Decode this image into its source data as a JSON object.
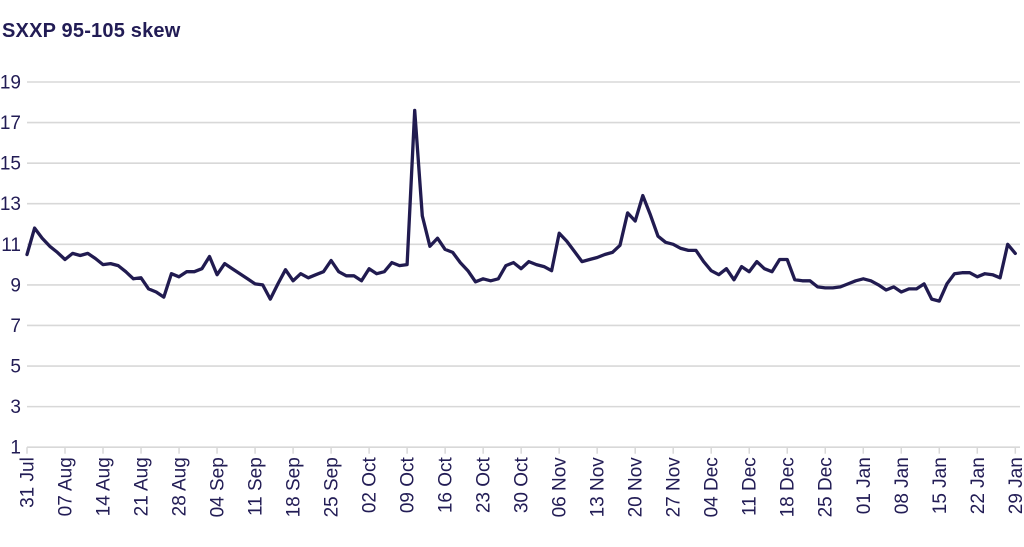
{
  "title": "SXXP 95-105 skew",
  "colors": {
    "navy": "#221c55",
    "line": "#211b50",
    "grid": "#d8d8d8",
    "background": "#ffffff"
  },
  "chart_data": {
    "type": "line",
    "title": "SXXP 95-105 skew",
    "xlabel": "",
    "ylabel": "",
    "ylim": [
      1,
      19
    ],
    "y_ticks": [
      1,
      3,
      5,
      7,
      9,
      11,
      13,
      15,
      17,
      19
    ],
    "grid": "horizontal",
    "legend": "none",
    "x_tick_labels": [
      "31 Jul",
      "07 Aug",
      "14 Aug",
      "21 Aug",
      "28 Aug",
      "04 Sep",
      "11 Sep",
      "18 Sep",
      "25 Sep",
      "02 Oct",
      "09 Oct",
      "16 Oct",
      "23 Oct",
      "30 Oct",
      "06 Nov",
      "13 Nov",
      "20 Nov",
      "27 Nov",
      "04 Dec",
      "11 Dec",
      "18 Dec",
      "25 Dec",
      "01 Jan",
      "08 Jan",
      "15 Jan",
      "22 Jan",
      "29 Jan"
    ],
    "x": [
      "31 Jul",
      "01 Aug",
      "02 Aug",
      "03 Aug",
      "04 Aug",
      "07 Aug",
      "08 Aug",
      "09 Aug",
      "10 Aug",
      "11 Aug",
      "14 Aug",
      "15 Aug",
      "16 Aug",
      "17 Aug",
      "18 Aug",
      "21 Aug",
      "22 Aug",
      "23 Aug",
      "24 Aug",
      "25 Aug",
      "28 Aug",
      "29 Aug",
      "30 Aug",
      "31 Aug",
      "01 Sep",
      "04 Sep",
      "05 Sep",
      "06 Sep",
      "07 Sep",
      "08 Sep",
      "11 Sep",
      "12 Sep",
      "13 Sep",
      "14 Sep",
      "15 Sep",
      "18 Sep",
      "19 Sep",
      "20 Sep",
      "21 Sep",
      "22 Sep",
      "25 Sep",
      "26 Sep",
      "27 Sep",
      "28 Sep",
      "29 Sep",
      "02 Oct",
      "03 Oct",
      "04 Oct",
      "05 Oct",
      "06 Oct",
      "09 Oct",
      "10 Oct",
      "11 Oct",
      "12 Oct",
      "13 Oct",
      "16 Oct",
      "17 Oct",
      "18 Oct",
      "19 Oct",
      "20 Oct",
      "23 Oct",
      "24 Oct",
      "25 Oct",
      "26 Oct",
      "27 Oct",
      "30 Oct",
      "31 Oct",
      "01 Nov",
      "02 Nov",
      "03 Nov",
      "06 Nov",
      "07 Nov",
      "08 Nov",
      "09 Nov",
      "10 Nov",
      "13 Nov",
      "14 Nov",
      "15 Nov",
      "16 Nov",
      "17 Nov",
      "20 Nov",
      "21 Nov",
      "22 Nov",
      "23 Nov",
      "24 Nov",
      "27 Nov",
      "28 Nov",
      "29 Nov",
      "30 Nov",
      "01 Dec",
      "04 Dec",
      "05 Dec",
      "06 Dec",
      "07 Dec",
      "08 Dec",
      "11 Dec",
      "12 Dec",
      "13 Dec",
      "14 Dec",
      "15 Dec",
      "18 Dec",
      "19 Dec",
      "20 Dec",
      "21 Dec",
      "22 Dec",
      "25 Dec",
      "26 Dec",
      "27 Dec",
      "28 Dec",
      "29 Dec",
      "01 Jan",
      "02 Jan",
      "03 Jan",
      "04 Jan",
      "05 Jan",
      "08 Jan",
      "09 Jan",
      "10 Jan",
      "11 Jan",
      "12 Jan",
      "15 Jan",
      "16 Jan",
      "17 Jan",
      "18 Jan",
      "19 Jan",
      "22 Jan",
      "23 Jan",
      "24 Jan",
      "25 Jan",
      "26 Jan",
      "29 Jan"
    ],
    "series": [
      {
        "name": "SXXP 95-105 skew",
        "values": [
          10.5,
          11.8,
          11.3,
          10.9,
          10.6,
          10.25,
          10.55,
          10.45,
          10.55,
          10.3,
          10.0,
          10.05,
          9.95,
          9.65,
          9.3,
          9.35,
          8.8,
          8.65,
          8.4,
          9.55,
          9.4,
          9.65,
          9.65,
          9.8,
          10.4,
          9.5,
          10.05,
          9.8,
          9.55,
          9.3,
          9.05,
          9.0,
          8.3,
          9.05,
          9.75,
          9.2,
          9.55,
          9.35,
          9.5,
          9.65,
          10.2,
          9.65,
          9.45,
          9.45,
          9.2,
          9.8,
          9.55,
          9.65,
          10.1,
          9.95,
          10.0,
          17.6,
          12.4,
          10.9,
          11.3,
          10.75,
          10.6,
          10.1,
          9.7,
          9.15,
          9.3,
          9.2,
          9.3,
          9.95,
          10.1,
          9.8,
          10.15,
          10.0,
          9.9,
          9.7,
          11.55,
          11.15,
          10.65,
          10.15,
          10.25,
          10.35,
          10.5,
          10.6,
          10.95,
          12.55,
          12.15,
          13.4,
          12.45,
          11.4,
          11.1,
          11.0,
          10.8,
          10.7,
          10.7,
          10.15,
          9.7,
          9.5,
          9.8,
          9.25,
          9.9,
          9.65,
          10.15,
          9.8,
          9.65,
          10.25,
          10.25,
          9.25,
          9.2,
          9.2,
          8.9,
          8.85,
          8.85,
          8.9,
          9.05,
          9.2,
          9.3,
          9.2,
          9.0,
          8.75,
          8.9,
          8.65,
          8.8,
          8.8,
          9.05,
          8.3,
          8.2,
          9.05,
          9.55,
          9.6,
          9.6,
          9.4,
          9.55,
          9.5,
          9.35,
          11.0,
          10.55
        ]
      }
    ]
  }
}
